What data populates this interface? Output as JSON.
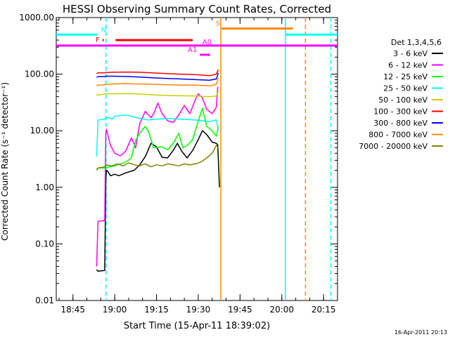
{
  "chart_data": {
    "type": "line",
    "title": "HESSI Observing Summary Count Rates, Corrected",
    "xlabel": "Start Time (15-Apr-11 18:39:02)",
    "ylabel": "Corrected Count Rate (s⁻¹ detector⁻¹)",
    "footer": "16-Apr-2011 20:13",
    "x_unit": "minutes after 18:39:02",
    "xlim": [
      0,
      101
    ],
    "ylim": [
      0.01,
      1000
    ],
    "y_scale": "log",
    "x_ticks": [
      {
        "x": 6,
        "label": "18:45"
      },
      {
        "x": 21,
        "label": "19:00"
      },
      {
        "x": 36,
        "label": "19:15"
      },
      {
        "x": 51,
        "label": "19:30"
      },
      {
        "x": 66,
        "label": "19:45"
      },
      {
        "x": 81,
        "label": "20:00"
      },
      {
        "x": 96,
        "label": "20:15"
      }
    ],
    "y_ticks": [
      {
        "y": 0.01,
        "label": "0.01"
      },
      {
        "y": 0.1,
        "label": "0.10"
      },
      {
        "y": 1,
        "label": "1.00"
      },
      {
        "y": 10,
        "label": "10.00"
      },
      {
        "y": 100,
        "label": "100.00"
      },
      {
        "y": 1000,
        "label": "1000.00"
      }
    ],
    "legend": {
      "title": "Det 1,3,4,5,6",
      "position": "right"
    },
    "series": [
      {
        "name": "3 - 6 keV",
        "color": "#000000",
        "x": [
          14.5,
          15.0,
          17.4,
          17.8,
          18.0,
          18.5,
          19.5,
          21.0,
          22.5,
          25.0,
          28.0,
          30.0,
          32.0,
          34.0,
          36.0,
          38.0,
          40.0,
          42.0,
          43.5,
          45.0,
          47.0,
          49.0,
          51.0,
          52.5,
          54.0,
          56.0,
          57.5,
          58.0,
          58.6
        ],
        "y": [
          0.035,
          0.033,
          0.034,
          1.3,
          2.0,
          1.9,
          1.6,
          1.7,
          1.6,
          1.8,
          2.0,
          2.5,
          3.5,
          6.0,
          5.2,
          3.4,
          3.3,
          4.5,
          6.0,
          4.4,
          3.3,
          4.5,
          7.0,
          10.0,
          8.6,
          6.3,
          6.0,
          5.6,
          1.0
        ]
      },
      {
        "name": "6 - 12 keV",
        "color": "#ff00ff",
        "x": [
          14.5,
          15.0,
          17.4,
          17.8,
          18.0,
          19.5,
          21.0,
          23.0,
          25.0,
          27.0,
          28.5,
          30.0,
          32.0,
          34.0,
          35.0,
          36.5,
          38.0,
          40.0,
          42.0,
          44.0,
          46.0,
          48.0,
          50.0,
          51.0,
          52.5,
          54.0,
          56.0,
          57.5,
          58.0
        ],
        "y": [
          0.04,
          0.25,
          0.26,
          9.0,
          10.5,
          5.5,
          4.0,
          3.6,
          4.4,
          7.5,
          5.0,
          13.5,
          22.0,
          17.0,
          20.0,
          31.0,
          20.0,
          15.0,
          14.0,
          19.0,
          28.0,
          20.0,
          36.0,
          45.0,
          38.0,
          24.0,
          20.0,
          26.0,
          60.0
        ]
      },
      {
        "name": "12 - 25 keV",
        "color": "#00ff00",
        "x": [
          14.5,
          15.0,
          17.4,
          17.8,
          19.0,
          21.0,
          23.0,
          25.0,
          27.0,
          28.5,
          30.0,
          32.0,
          33.0,
          35.0,
          38.0,
          40.0,
          42.0,
          44.0,
          45.5,
          47.0,
          49.0,
          51.0,
          52.5,
          54.0,
          56.0,
          57.5,
          58.2
        ],
        "y": [
          2.1,
          2.2,
          2.2,
          2.2,
          2.3,
          2.4,
          2.6,
          2.8,
          3.3,
          6.8,
          9.0,
          12.0,
          10.0,
          5.0,
          5.2,
          4.6,
          6.0,
          9.0,
          5.0,
          5.5,
          7.0,
          15.0,
          25.0,
          12.0,
          10.0,
          8.0,
          12.0
        ]
      },
      {
        "name": "25 - 50 keV",
        "color": "#00ffff",
        "x": [
          14.5,
          15.0,
          17.4,
          17.8,
          19.0,
          20.0,
          21.0,
          25.0,
          30.0,
          33.0,
          36.0,
          40.0,
          45.0,
          50.0,
          55.0,
          57.5,
          58.2
        ],
        "y": [
          3.5,
          15.5,
          16.0,
          17.0,
          17.0,
          16.0,
          18.0,
          19.0,
          16.5,
          15.5,
          16.0,
          16.5,
          16.0,
          15.5,
          14.5,
          15.5,
          10.0
        ]
      },
      {
        "name": "50 - 100 keV",
        "color": "#cccc00",
        "x": [
          14.5,
          15.0,
          17.4,
          17.8,
          20.0,
          25.0,
          30.0,
          35.0,
          40.0,
          45.0,
          50.0,
          55.0,
          57.5,
          58.2
        ],
        "y": [
          42.0,
          43.0,
          44.0,
          45.0,
          45.0,
          45.5,
          44.5,
          43.0,
          42.0,
          41.5,
          41.0,
          40.0,
          41.0,
          50.0
        ]
      },
      {
        "name": "100 - 300 keV",
        "color": "#ff0000",
        "x": [
          14.5,
          15.0,
          17.4,
          17.8,
          20.0,
          25.0,
          30.0,
          35.0,
          40.0,
          45.0,
          50.0,
          55.0,
          57.5,
          58.2
        ],
        "y": [
          103.0,
          105.0,
          106.0,
          107.0,
          108.0,
          109.0,
          108.0,
          105.0,
          102.0,
          100.0,
          98.0,
          94.0,
          100.0,
          120.0
        ]
      },
      {
        "name": "300 - 800 keV",
        "color": "#0000ff",
        "x": [
          14.5,
          15.0,
          17.4,
          17.8,
          20.0,
          25.0,
          30.0,
          35.0,
          40.0,
          45.0,
          50.0,
          55.0,
          57.5,
          58.2
        ],
        "y": [
          88.0,
          90.0,
          91.0,
          92.0,
          92.0,
          91.0,
          89.0,
          86.0,
          84.0,
          82.0,
          80.0,
          78.0,
          82.0,
          105.0
        ]
      },
      {
        "name": "800 - 7000 keV",
        "color": "#ff8800",
        "x": [
          14.5,
          15.0,
          17.4,
          17.8,
          20.0,
          25.0,
          30.0,
          35.0,
          40.0,
          45.0,
          50.0,
          55.0,
          57.5,
          58.2
        ],
        "y": [
          62.0,
          64.0,
          65.0,
          66.0,
          67.0,
          68.0,
          67.0,
          66.0,
          65.0,
          64.0,
          64.0,
          62.0,
          66.0,
          85.0
        ]
      },
      {
        "name": "7000 - 20000 keV",
        "color": "#808000",
        "x": [
          14.5,
          15.0,
          17.4,
          17.8,
          20.0,
          22.0,
          24.0,
          26.0,
          28.0,
          30.0,
          32.0,
          34.0,
          36.0,
          38.0,
          40.0,
          42.0,
          44.0,
          46.0,
          48.0,
          50.0,
          52.0,
          54.0,
          56.0,
          57.5,
          58.2
        ],
        "y": [
          2.0,
          2.2,
          2.3,
          2.5,
          2.4,
          2.6,
          2.4,
          2.7,
          2.5,
          2.4,
          2.6,
          2.3,
          2.5,
          2.4,
          2.6,
          2.5,
          2.4,
          2.6,
          2.5,
          2.6,
          2.8,
          3.3,
          4.0,
          5.5,
          5.0
        ]
      }
    ],
    "state_bars": [
      {
        "label": "N",
        "color": "#00ffff",
        "y": 500,
        "segments": [
          [
            0,
            14.8
          ],
          [
            82.5,
            101
          ]
        ]
      },
      {
        "label": "F",
        "color": "#ff0000",
        "y": 400,
        "segments": [
          [
            16.6,
            17.1
          ],
          [
            21.3,
            49
          ]
        ]
      },
      {
        "label": "S",
        "color": "#ff8800",
        "y": 640,
        "segments": [
          [
            59.4,
            85
          ]
        ]
      },
      {
        "label": "A0",
        "color": "#ff00ff",
        "y": 320,
        "segments": [
          [
            0,
            101
          ]
        ]
      },
      {
        "label": "A1",
        "color": "#ff00ff",
        "y": 220,
        "segments": [
          [
            51.6,
            55.2
          ]
        ]
      }
    ],
    "vertical_markers": [
      {
        "x": 17.9,
        "color": "#00ffff",
        "style": "dashed"
      },
      {
        "x": 59.1,
        "color": "#ff8800",
        "style": "solid"
      },
      {
        "x": 82.3,
        "color": "#00ffff",
        "style": "solid"
      },
      {
        "x": 89.5,
        "color": "#ff8800",
        "style": "dashed"
      },
      {
        "x": 98.6,
        "color": "#00ffff",
        "style": "dashed"
      }
    ]
  }
}
